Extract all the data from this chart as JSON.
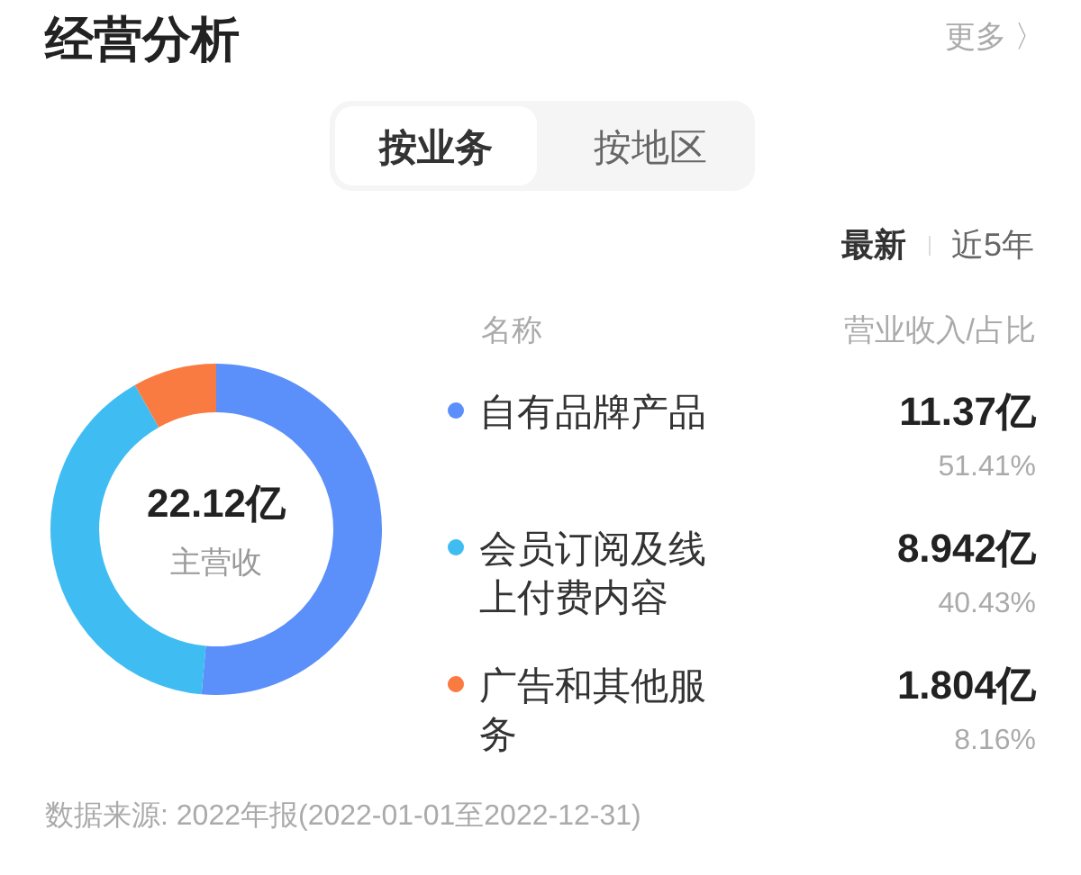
{
  "chart_data": {
    "type": "donut",
    "title": "经营分析",
    "categories": [
      "自有品牌产品",
      "会员订阅及线上付费内容",
      "广告和其他服务"
    ],
    "values": [
      11.37,
      8.942,
      1.804
    ],
    "colors": [
      "#5b8ff9",
      "#3fbdf2",
      "#fa7b42"
    ],
    "value_labels": [
      "11.37亿\n51.41%",
      "8.942亿\n40.43%",
      "1.804亿\n8.16%"
    ],
    "legend": "right",
    "annotations": [
      "更多 〉",
      "按业务",
      "按地区",
      "最新",
      "近5年",
      "名称",
      "营业收入/占比",
      "22.12亿",
      "主营收",
      "数据来源: 2022年报(2022-01-01至2022-12-31)"
    ]
  }
}
